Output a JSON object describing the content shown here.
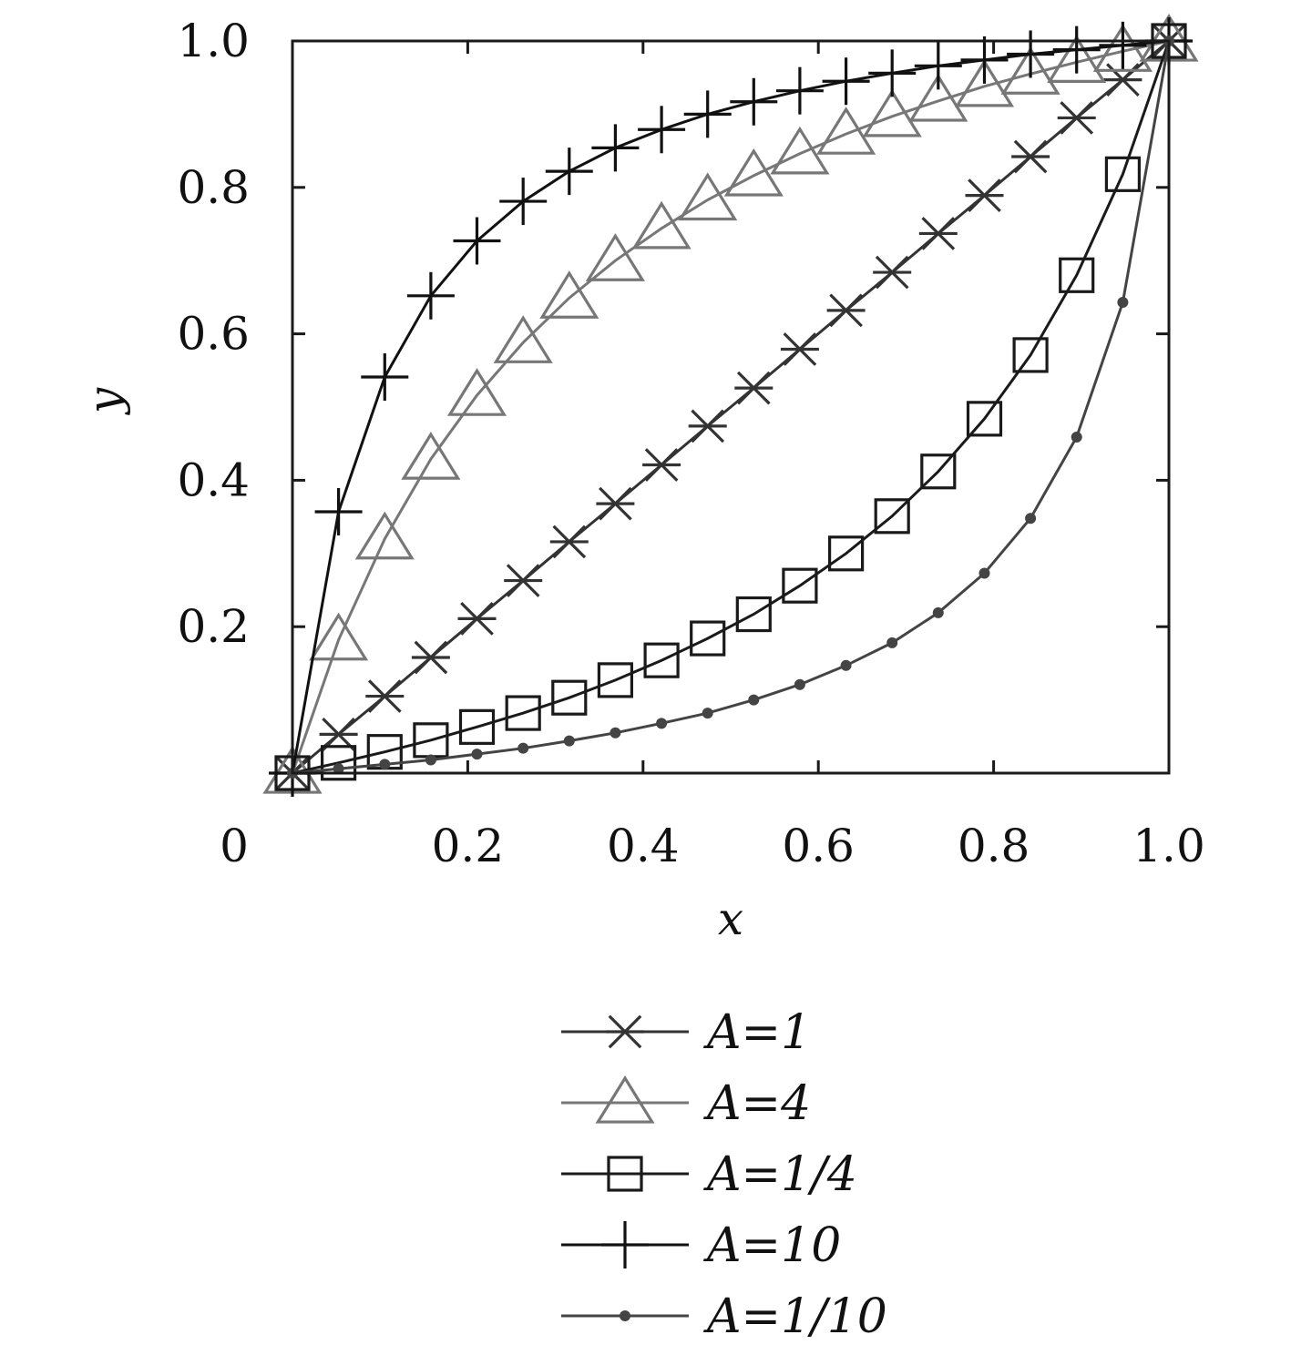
{
  "chart_data": {
    "type": "line",
    "xlabel": "x",
    "ylabel": "y",
    "xlim": [
      0,
      1
    ],
    "ylim": [
      0,
      1
    ],
    "x_ticks": [
      {
        "value": 0,
        "label": "0"
      },
      {
        "value": 0.2,
        "label": "0.2"
      },
      {
        "value": 0.4,
        "label": "0.4"
      },
      {
        "value": 0.6,
        "label": "0.6"
      },
      {
        "value": 0.8,
        "label": "0.8"
      },
      {
        "value": 1.0,
        "label": "1.0"
      }
    ],
    "y_ticks": [
      {
        "value": 0.2,
        "label": "0.2"
      },
      {
        "value": 0.4,
        "label": "0.4"
      },
      {
        "value": 0.6,
        "label": "0.6"
      },
      {
        "value": 0.8,
        "label": "0.8"
      },
      {
        "value": 1.0,
        "label": "1.0"
      }
    ],
    "grid": false,
    "legend_position": "below",
    "x": [
      0,
      0.0526,
      0.1053,
      0.1579,
      0.2105,
      0.2632,
      0.3158,
      0.3684,
      0.4211,
      0.4737,
      0.5263,
      0.5789,
      0.6316,
      0.6842,
      0.7368,
      0.7895,
      0.8421,
      0.8947,
      0.9474,
      1.0
    ],
    "series": [
      {
        "name": "A=1",
        "marker": "asterisk",
        "color": "#333333",
        "values": [
          0,
          0.053,
          0.105,
          0.158,
          0.211,
          0.263,
          0.316,
          0.368,
          0.421,
          0.474,
          0.526,
          0.579,
          0.632,
          0.684,
          0.737,
          0.789,
          0.842,
          0.895,
          0.947,
          1.0
        ]
      },
      {
        "name": "A=4",
        "marker": "triangle",
        "color": "#777777",
        "values": [
          0,
          0.182,
          0.32,
          0.429,
          0.516,
          0.588,
          0.649,
          0.7,
          0.744,
          0.783,
          0.816,
          0.846,
          0.873,
          0.897,
          0.918,
          0.938,
          0.955,
          0.971,
          0.986,
          1.0
        ]
      },
      {
        "name": "A=1/4",
        "marker": "square",
        "color": "#1a1a1a",
        "values": [
          0,
          0.014,
          0.029,
          0.045,
          0.063,
          0.082,
          0.103,
          0.127,
          0.154,
          0.184,
          0.217,
          0.256,
          0.3,
          0.351,
          0.412,
          0.484,
          0.571,
          0.68,
          0.818,
          1.0
        ]
      },
      {
        "name": "A=10",
        "marker": "plus",
        "color": "#111111",
        "values": [
          0,
          0.357,
          0.541,
          0.652,
          0.727,
          0.781,
          0.822,
          0.854,
          0.879,
          0.9,
          0.917,
          0.932,
          0.945,
          0.956,
          0.966,
          0.974,
          0.982,
          0.988,
          0.994,
          1.0
        ]
      },
      {
        "name": "A=1/10",
        "marker": "dot",
        "color": "#444444",
        "values": [
          0,
          0.006,
          0.012,
          0.018,
          0.026,
          0.034,
          0.044,
          0.055,
          0.068,
          0.082,
          0.1,
          0.121,
          0.147,
          0.178,
          0.219,
          0.273,
          0.348,
          0.459,
          0.643,
          1.0
        ]
      }
    ]
  }
}
